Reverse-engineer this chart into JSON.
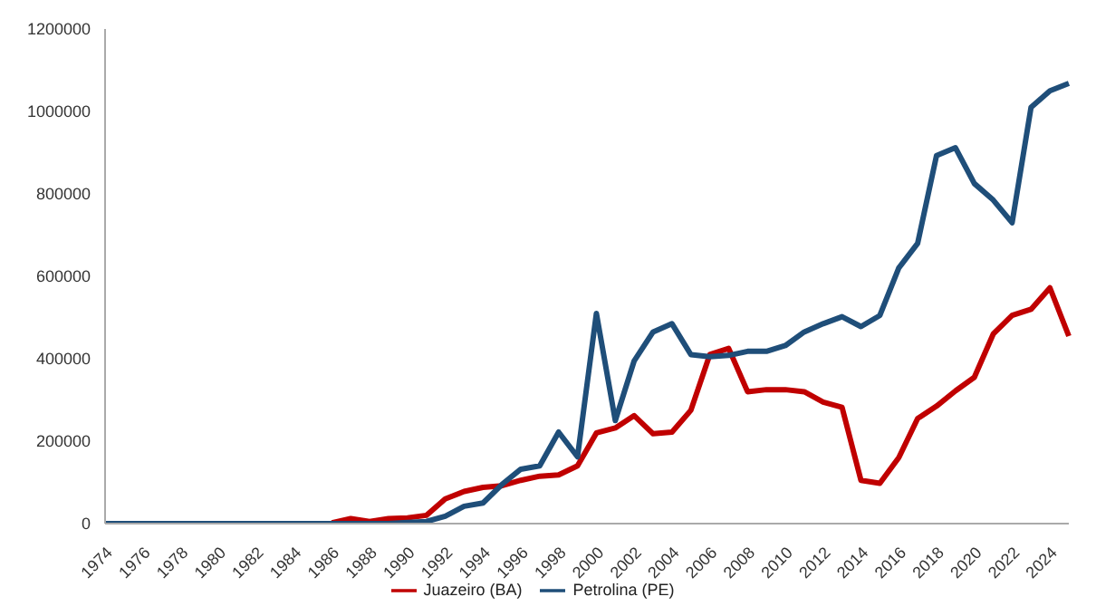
{
  "chart_data": {
    "type": "line",
    "categories": [
      "1974",
      null,
      "1976",
      null,
      "1978",
      null,
      "1980",
      null,
      "1982",
      null,
      "1984",
      null,
      "1986",
      null,
      "1988",
      null,
      "1990",
      null,
      "1992",
      null,
      "1994",
      null,
      "1996",
      null,
      "1998",
      null,
      "2000",
      null,
      "2002",
      null,
      "2004",
      null,
      "2006",
      null,
      "2008",
      null,
      "2010",
      null,
      "2012",
      null,
      "2014",
      null,
      "2016",
      null,
      "2018",
      null,
      "2020",
      null,
      "2022",
      null,
      "2024",
      null
    ],
    "series": [
      {
        "name": "Juazeiro (BA)",
        "color": "#c00000",
        "values": [
          null,
          null,
          null,
          null,
          null,
          null,
          null,
          null,
          null,
          null,
          null,
          null,
          2000,
          12000,
          5000,
          12000,
          14000,
          20000,
          60000,
          78000,
          88000,
          92000,
          105000,
          115000,
          118000,
          140000,
          220000,
          232000,
          262000,
          218000,
          222000,
          275000,
          410000,
          425000,
          320000,
          325000,
          325000,
          320000,
          295000,
          282000,
          105000,
          98000,
          160000,
          255000,
          285000,
          322000,
          355000,
          460000,
          505000,
          520000,
          572000,
          455000
        ]
      },
      {
        "name": "Petrolina (PE)",
        "color": "#1f4e79",
        "values": [
          0,
          0,
          0,
          0,
          0,
          0,
          0,
          0,
          0,
          0,
          0,
          0,
          0,
          0,
          0,
          0,
          3000,
          5000,
          18000,
          42000,
          50000,
          95000,
          132000,
          140000,
          222000,
          162000,
          510000,
          250000,
          395000,
          465000,
          485000,
          410000,
          405000,
          408000,
          418000,
          418000,
          432000,
          465000,
          485000,
          502000,
          478000,
          505000,
          620000,
          680000,
          893000,
          912000,
          825000,
          785000,
          730000,
          1010000,
          1050000,
          1068000
        ]
      }
    ],
    "ylim": [
      0,
      1200000
    ],
    "yticks": [
      0,
      200000,
      400000,
      600000,
      800000,
      1000000,
      1200000
    ],
    "grid": false,
    "legend": "bottom",
    "marker": "none",
    "line_style": "solid"
  }
}
